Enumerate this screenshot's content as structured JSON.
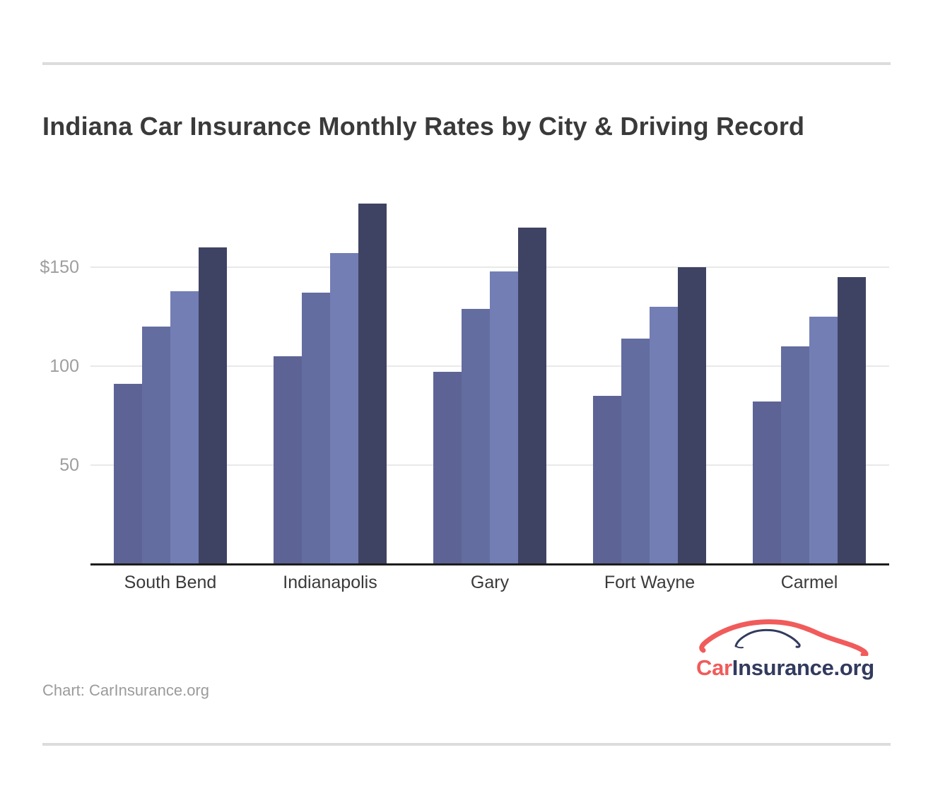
{
  "header": {
    "title": "Indiana Car Insurance Monthly Rates by City & Driving Record"
  },
  "chart_data": {
    "type": "bar",
    "title": "Indiana Car Insurance Monthly Rates by City & Driving Record",
    "categories": [
      "South Bend",
      "Indianapolis",
      "Gary",
      "Fort Wayne",
      "Carmel"
    ],
    "series": [
      {
        "name": "series-1",
        "color": "#5d6495",
        "values": [
          91,
          105,
          97,
          85,
          82
        ]
      },
      {
        "name": "series-2",
        "color": "#646d9f",
        "values": [
          120,
          137,
          129,
          114,
          110
        ]
      },
      {
        "name": "series-3",
        "color": "#737eb5",
        "values": [
          138,
          157,
          148,
          130,
          125
        ]
      },
      {
        "name": "series-4",
        "color": "#3f4363",
        "values": [
          160,
          182,
          170,
          150,
          145
        ]
      }
    ],
    "xlabel": "",
    "ylabel": "",
    "y_ticks": [
      {
        "value": 50,
        "label": "50"
      },
      {
        "value": 100,
        "label": "100"
      },
      {
        "value": 150,
        "label": "$150"
      }
    ],
    "ylim": [
      0,
      203
    ],
    "grid": "horizontal",
    "legend": "none",
    "currency_unit": "$ per month"
  },
  "logo": {
    "car": "Car",
    "insurance": "Insurance",
    "tld": ".org",
    "car_color": "#f15b5b",
    "insurance_color": "#323a5e"
  },
  "footer": {
    "attribution": "Chart: CarInsurance.org"
  }
}
